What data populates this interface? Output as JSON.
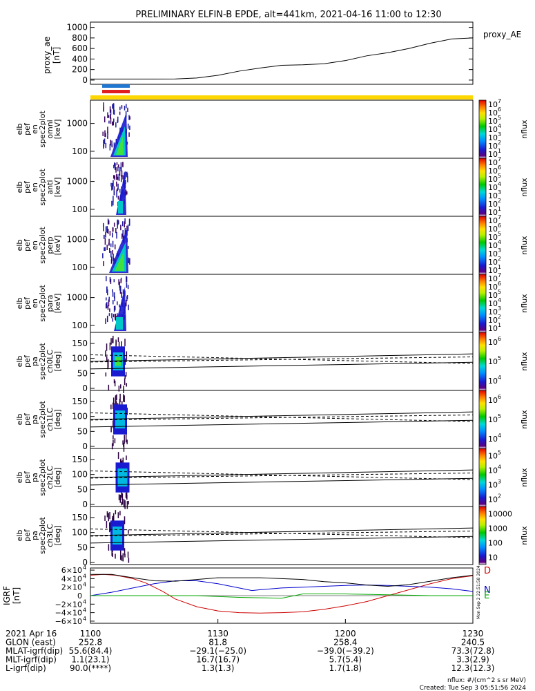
{
  "title": "PRELIMINARY ELFIN-B EPDE, alt=441km, 2021-04-16 11:00 to 12:30",
  "panels": {
    "ae": {
      "ylabel_lines": [
        "proxy_ae",
        "[nT]"
      ],
      "legend": "proxy_AE",
      "yticks": [
        "0",
        "200",
        "400",
        "600",
        "800",
        "1000"
      ],
      "ytick_values": [
        0,
        200,
        400,
        600,
        800,
        1000
      ],
      "ylim": [
        -80,
        1100
      ]
    },
    "energy": [
      {
        "ylabel_lines": [
          "elb",
          "pef",
          "en",
          "spec2plot",
          "omni",
          "[keV]"
        ],
        "cbar_label": "nflux",
        "cbar_ticks": [
          "10",
          "10",
          "10",
          "10",
          "10",
          "10",
          "10"
        ],
        "cbar_exps": [
          "1",
          "2",
          "3",
          "4",
          "5",
          "6",
          "7"
        ]
      },
      {
        "ylabel_lines": [
          "elb",
          "pef",
          "en",
          "spec2plot",
          "anti",
          "[keV]"
        ],
        "cbar_label": "nflux",
        "cbar_ticks": [
          "10",
          "10",
          "10",
          "10",
          "10",
          "10",
          "10"
        ],
        "cbar_exps": [
          "1",
          "2",
          "3",
          "4",
          "5",
          "6",
          "7"
        ]
      },
      {
        "ylabel_lines": [
          "elb",
          "pef",
          "en",
          "spec2plot",
          "perp",
          "[keV]"
        ],
        "cbar_label": "nflux",
        "cbar_ticks": [
          "10",
          "10",
          "10",
          "10",
          "10",
          "10",
          "10"
        ],
        "cbar_exps": [
          "1",
          "2",
          "3",
          "4",
          "5",
          "6",
          "7"
        ]
      },
      {
        "ylabel_lines": [
          "elb",
          "pef",
          "en",
          "spec2plot",
          "para",
          "[keV]"
        ],
        "cbar_label": "nflux",
        "cbar_ticks": [
          "10",
          "10",
          "10",
          "10",
          "10",
          "10",
          "10"
        ],
        "cbar_exps": [
          "1",
          "2",
          "3",
          "4",
          "5",
          "6",
          "7"
        ]
      }
    ],
    "energy_yticks": [
      "100",
      "1000"
    ],
    "pitch": [
      {
        "ylabel_lines": [
          "elb",
          "pef",
          "pa",
          "spec2plot",
          "ch0LC",
          "[deg]"
        ],
        "cbar_label": "nflux",
        "cbar_ticks": [
          "10",
          "10",
          "10"
        ],
        "cbar_exps": [
          "4",
          "5",
          "6"
        ]
      },
      {
        "ylabel_lines": [
          "elb",
          "pef",
          "pa",
          "spec2plot",
          "ch1LC",
          "[deg]"
        ],
        "cbar_label": "nflux",
        "cbar_ticks": [
          "10",
          "10",
          "10"
        ],
        "cbar_exps": [
          "4",
          "5",
          "6"
        ]
      },
      {
        "ylabel_lines": [
          "elb",
          "pef",
          "pa",
          "spec2plot",
          "ch2LC",
          "[deg]"
        ],
        "cbar_label": "nflux",
        "cbar_ticks": [
          "10",
          "10",
          "10",
          "10"
        ],
        "cbar_exps": [
          "2",
          "3",
          "4",
          "5"
        ]
      },
      {
        "ylabel_lines": [
          "elb",
          "pef",
          "pa",
          "spec2plot",
          "ch3LC",
          "[deg]"
        ],
        "cbar_label": "nflux",
        "cbar_ticks": [
          "10",
          "100",
          "1000",
          "10000"
        ],
        "cbar_exps": [
          "",
          "",
          "",
          ""
        ]
      }
    ],
    "pitch_yticks": [
      "0",
      "50",
      "100",
      "150"
    ],
    "pitch_ytick_values": [
      0,
      50,
      100,
      150
    ],
    "igrf": {
      "ylabel_lines": [
        "IGRF",
        "[nT]"
      ],
      "ytick_mantissas": [
        "−6×10",
        "−4×10",
        "−2×10",
        "0",
        "2×10",
        "4×10",
        "6×10"
      ],
      "ytick_exps": [
        "4",
        "4",
        "4",
        "",
        "4",
        "4",
        "4"
      ],
      "ytick_values": [
        -60000,
        -40000,
        -20000,
        0,
        20000,
        40000,
        60000
      ],
      "legend": [
        "D",
        "N",
        "E"
      ],
      "legend_colors": [
        "#cc0000",
        "#0000cc",
        "#00aa00"
      ],
      "side_stamp": "Mon Sep  2 22:51:58 2024"
    }
  },
  "xaxis": {
    "ticks": [
      "1100",
      "1130",
      "1200",
      "1230"
    ],
    "tick_minutes": [
      0,
      30,
      60,
      90
    ],
    "range_minutes": [
      0,
      90
    ],
    "rows": [
      {
        "label": "2021 Apr 16",
        "values": [
          "1100",
          "1130",
          "1200",
          "1230"
        ]
      },
      {
        "label": "GLON (east)",
        "values": [
          "252.8",
          "81.8",
          "258.4",
          "240.5"
        ]
      },
      {
        "label": "MLAT-igrf(dip)",
        "values": [
          "55.6(84.4)",
          "−29.1(−25.0)",
          "−39.0(−39.2)",
          "73.3(72.8)"
        ]
      },
      {
        "label": "MLT-igrf(dip)",
        "values": [
          "1.1(23.1)",
          "16.7(16.7)",
          "5.7(5.4)",
          "3.3(2.9)"
        ]
      },
      {
        "label": "L-igrf(dip)",
        "values": [
          "90.0(****)",
          "1.3(1.3)",
          "1.7(1.8)",
          "12.3(12.3)"
        ]
      }
    ]
  },
  "footer": {
    "units": "nflux: #/(cm^2 s sr MeV)",
    "created": "Created: Tue Sep  3 05:51:56 2024"
  },
  "colors": {
    "yellow_bar": "#ffd700",
    "blue_bar": "#1f77d0",
    "red_bar": "#e02020",
    "ae_line": "#000000",
    "igrf_D": "#cc0000",
    "igrf_N": "#0000cc",
    "igrf_E": "#00aa00",
    "igrf_total": "#000000"
  },
  "chart_data": {
    "type": "line",
    "series": [
      {
        "name": "proxy_AE",
        "x": [
          0,
          5,
          10,
          15,
          20,
          25,
          30,
          35,
          40,
          45,
          50,
          55,
          60,
          65,
          70,
          75,
          80,
          85,
          90
        ],
        "values": [
          20,
          20,
          20,
          20,
          22,
          40,
          90,
          170,
          230,
          280,
          290,
          310,
          370,
          460,
          520,
          600,
          700,
          780,
          800
        ]
      },
      {
        "name": "D",
        "x": [
          0,
          3,
          6,
          10,
          13,
          17,
          20,
          25,
          30,
          35,
          40,
          45,
          50,
          55,
          60,
          65,
          70,
          75,
          80,
          85,
          90
        ],
        "values": [
          48000,
          50000,
          48000,
          40000,
          30000,
          10000,
          -8000,
          -26000,
          -36000,
          -40000,
          -41000,
          -40000,
          -38000,
          -32000,
          -24000,
          -14000,
          0,
          14000,
          28000,
          40000,
          47000
        ]
      },
      {
        "name": "N",
        "x": [
          0,
          5,
          10,
          15,
          20,
          25,
          30,
          35,
          38,
          40,
          45,
          50,
          55,
          60,
          65,
          70,
          75,
          80,
          85,
          90
        ],
        "values": [
          0,
          8000,
          18000,
          28000,
          35000,
          35000,
          28000,
          18000,
          12000,
          14000,
          18000,
          20000,
          22000,
          24000,
          25000,
          24000,
          22000,
          20000,
          16000,
          10000
        ]
      },
      {
        "name": "E",
        "x": [
          0,
          5,
          10,
          15,
          20,
          25,
          30,
          35,
          40,
          45,
          50,
          55,
          60,
          65,
          70,
          75,
          80,
          85,
          90
        ],
        "values": [
          0,
          0,
          0,
          0,
          0,
          0,
          -2000,
          -4000,
          -5000,
          -6000,
          4000,
          4000,
          4000,
          3000,
          2000,
          1000,
          0,
          0,
          0
        ]
      },
      {
        "name": "total",
        "x": [
          0,
          5,
          10,
          15,
          20,
          25,
          30,
          35,
          40,
          45,
          50,
          55,
          60,
          65,
          70,
          75,
          80,
          85,
          90
        ],
        "values": [
          50000,
          50000,
          42000,
          35000,
          34000,
          38000,
          42000,
          42000,
          42000,
          40000,
          38000,
          33000,
          30000,
          25000,
          22000,
          26000,
          34000,
          42000,
          48000
        ]
      }
    ],
    "pitch_lines": {
      "x": [
        0,
        90
      ],
      "upper_solid": [
        90,
        115
      ],
      "lower_solid": [
        65,
        87
      ],
      "dashed_upper": [
        112,
        83
      ],
      "dashed_lower": [
        88,
        105
      ]
    },
    "xlim": [
      0,
      90
    ]
  }
}
